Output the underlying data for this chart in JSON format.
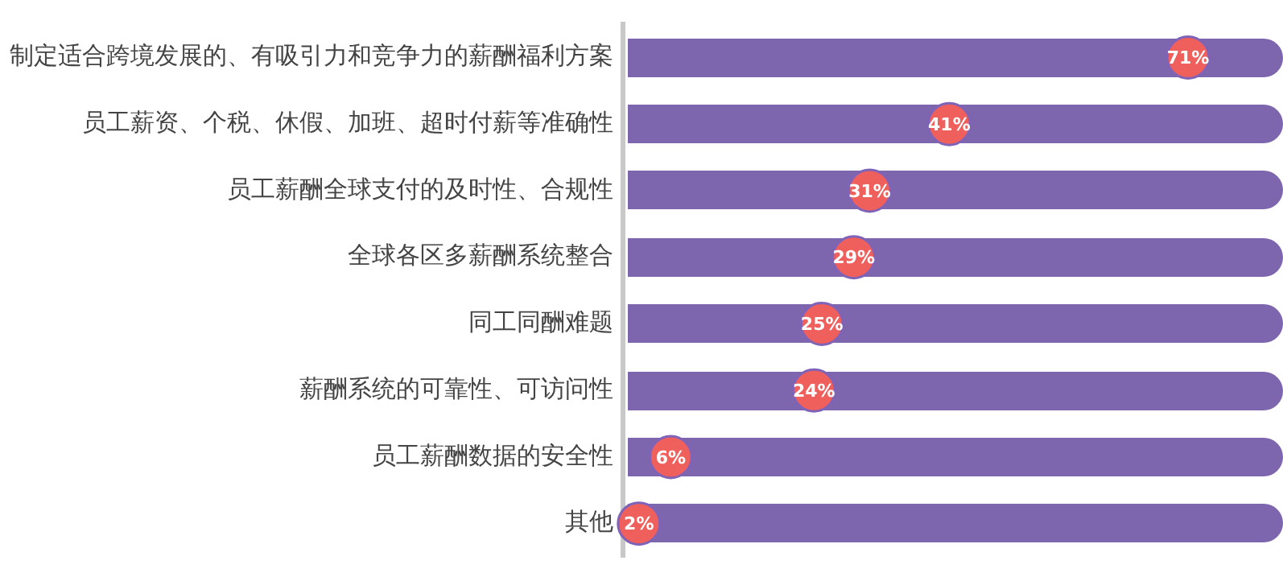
{
  "chart_data": {
    "type": "scatter",
    "orientation": "horizontal",
    "categories": [
      "制定适合跨境发展的、有吸引力和竞争力的薪酬福利方案",
      "员工薪资、个税、休假、加班、超时付薪等准确性",
      "员工薪酬全球支付的及时性、合规性",
      "全球各区多薪酬系统整合",
      "同工同酬难题",
      "薪酬系统的可靠性、可访问性",
      "员工薪酬数据的安全性",
      "其他"
    ],
    "values": [
      71,
      41,
      31,
      29,
      25,
      24,
      6,
      2
    ],
    "value_labels": [
      "71%",
      "41%",
      "31%",
      "29%",
      "25%",
      "24%",
      "6%",
      "2%"
    ],
    "color": "#ef5f5c",
    "marker": "circle",
    "tick_labels": "y",
    "legend": false
  }
}
